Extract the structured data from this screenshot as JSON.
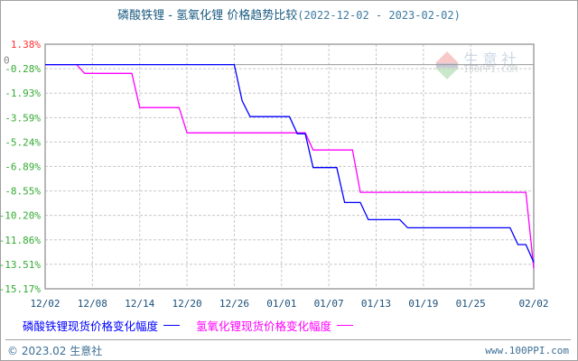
{
  "title": {
    "main": "磷酸铁锂 - 氢氧化锂 价格趋势比较",
    "range": "(2022-12-02 - 2023-02-02)"
  },
  "watermark": {
    "cn": "生意社",
    "en": "100PPI.COM"
  },
  "footer": {
    "copyright": "© 2023.02 生意社",
    "site": "www.100PPI.com"
  },
  "chart_data": {
    "type": "line",
    "title": "磷酸铁锂 - 氢氧化锂 价格趋势比较(2022-12-02 - 2023-02-02)",
    "x_range": [
      "2022-12-02",
      "2023-02-02"
    ],
    "ylim": [
      -15.17,
      1.38
    ],
    "y_ticks": [
      "1.38%",
      "-0.28%",
      "-1.93%",
      "-3.59%",
      "-5.24%",
      "-6.89%",
      "-8.55%",
      "-10.20%",
      "-11.86%",
      "-13.51%",
      "-15.17%"
    ],
    "y_tick_values": [
      1.38,
      -0.28,
      -1.93,
      -3.59,
      -5.24,
      -6.89,
      -8.55,
      -10.2,
      -11.86,
      -13.51,
      -15.17
    ],
    "zero_label": "0",
    "x_ticks": [
      "12/02",
      "12/08",
      "12/14",
      "12/20",
      "12/26",
      "01/01",
      "01/07",
      "01/13",
      "01/19",
      "01/25",
      "02/02"
    ],
    "x_tick_dates": [
      "2022-12-02",
      "2022-12-08",
      "2022-12-14",
      "2022-12-20",
      "2022-12-26",
      "2023-01-01",
      "2023-01-07",
      "2023-01-13",
      "2023-01-19",
      "2023-01-25",
      "2023-02-02"
    ],
    "grid": true,
    "legend_position": "bottom",
    "series": [
      {
        "name": "磷酸铁锂现货价格变化幅度",
        "color": "#0000ff",
        "points": [
          [
            "2022-12-02",
            0
          ],
          [
            "2022-12-26",
            0
          ],
          [
            "2022-12-27",
            -2.45
          ],
          [
            "2022-12-28",
            -3.52
          ],
          [
            "2023-01-02",
            -3.52
          ],
          [
            "2023-01-03",
            -4.68
          ],
          [
            "2023-01-04",
            -4.68
          ],
          [
            "2023-01-05",
            -6.97
          ],
          [
            "2023-01-08",
            -6.97
          ],
          [
            "2023-01-09",
            -9.33
          ],
          [
            "2023-01-11",
            -9.33
          ],
          [
            "2023-01-12",
            -10.49
          ],
          [
            "2023-01-16",
            -10.49
          ],
          [
            "2023-01-17",
            -11.04
          ],
          [
            "2023-01-30",
            -11.04
          ],
          [
            "2023-01-31",
            -12.18
          ],
          [
            "2023-02-01",
            -12.18
          ],
          [
            "2023-02-02",
            -13.38
          ]
        ]
      },
      {
        "name": "氢氧化锂现货价格变化幅度",
        "color": "#ff00ff",
        "points": [
          [
            "2022-12-02",
            0
          ],
          [
            "2022-12-06",
            0
          ],
          [
            "2022-12-07",
            -0.59
          ],
          [
            "2022-12-13",
            -0.59
          ],
          [
            "2022-12-14",
            -2.91
          ],
          [
            "2022-12-19",
            -2.91
          ],
          [
            "2022-12-20",
            -4.62
          ],
          [
            "2023-01-04",
            -4.62
          ],
          [
            "2023-01-05",
            -5.78
          ],
          [
            "2023-01-10",
            -5.78
          ],
          [
            "2023-01-11",
            -8.64
          ],
          [
            "2023-02-01",
            -8.64
          ],
          [
            "2023-02-02",
            -13.78
          ]
        ]
      }
    ],
    "colors": {
      "top_label": "#ff3030",
      "tick_label": "#33aa33",
      "grid": "#c8c8c8",
      "axis": "#a0a0a0"
    }
  }
}
